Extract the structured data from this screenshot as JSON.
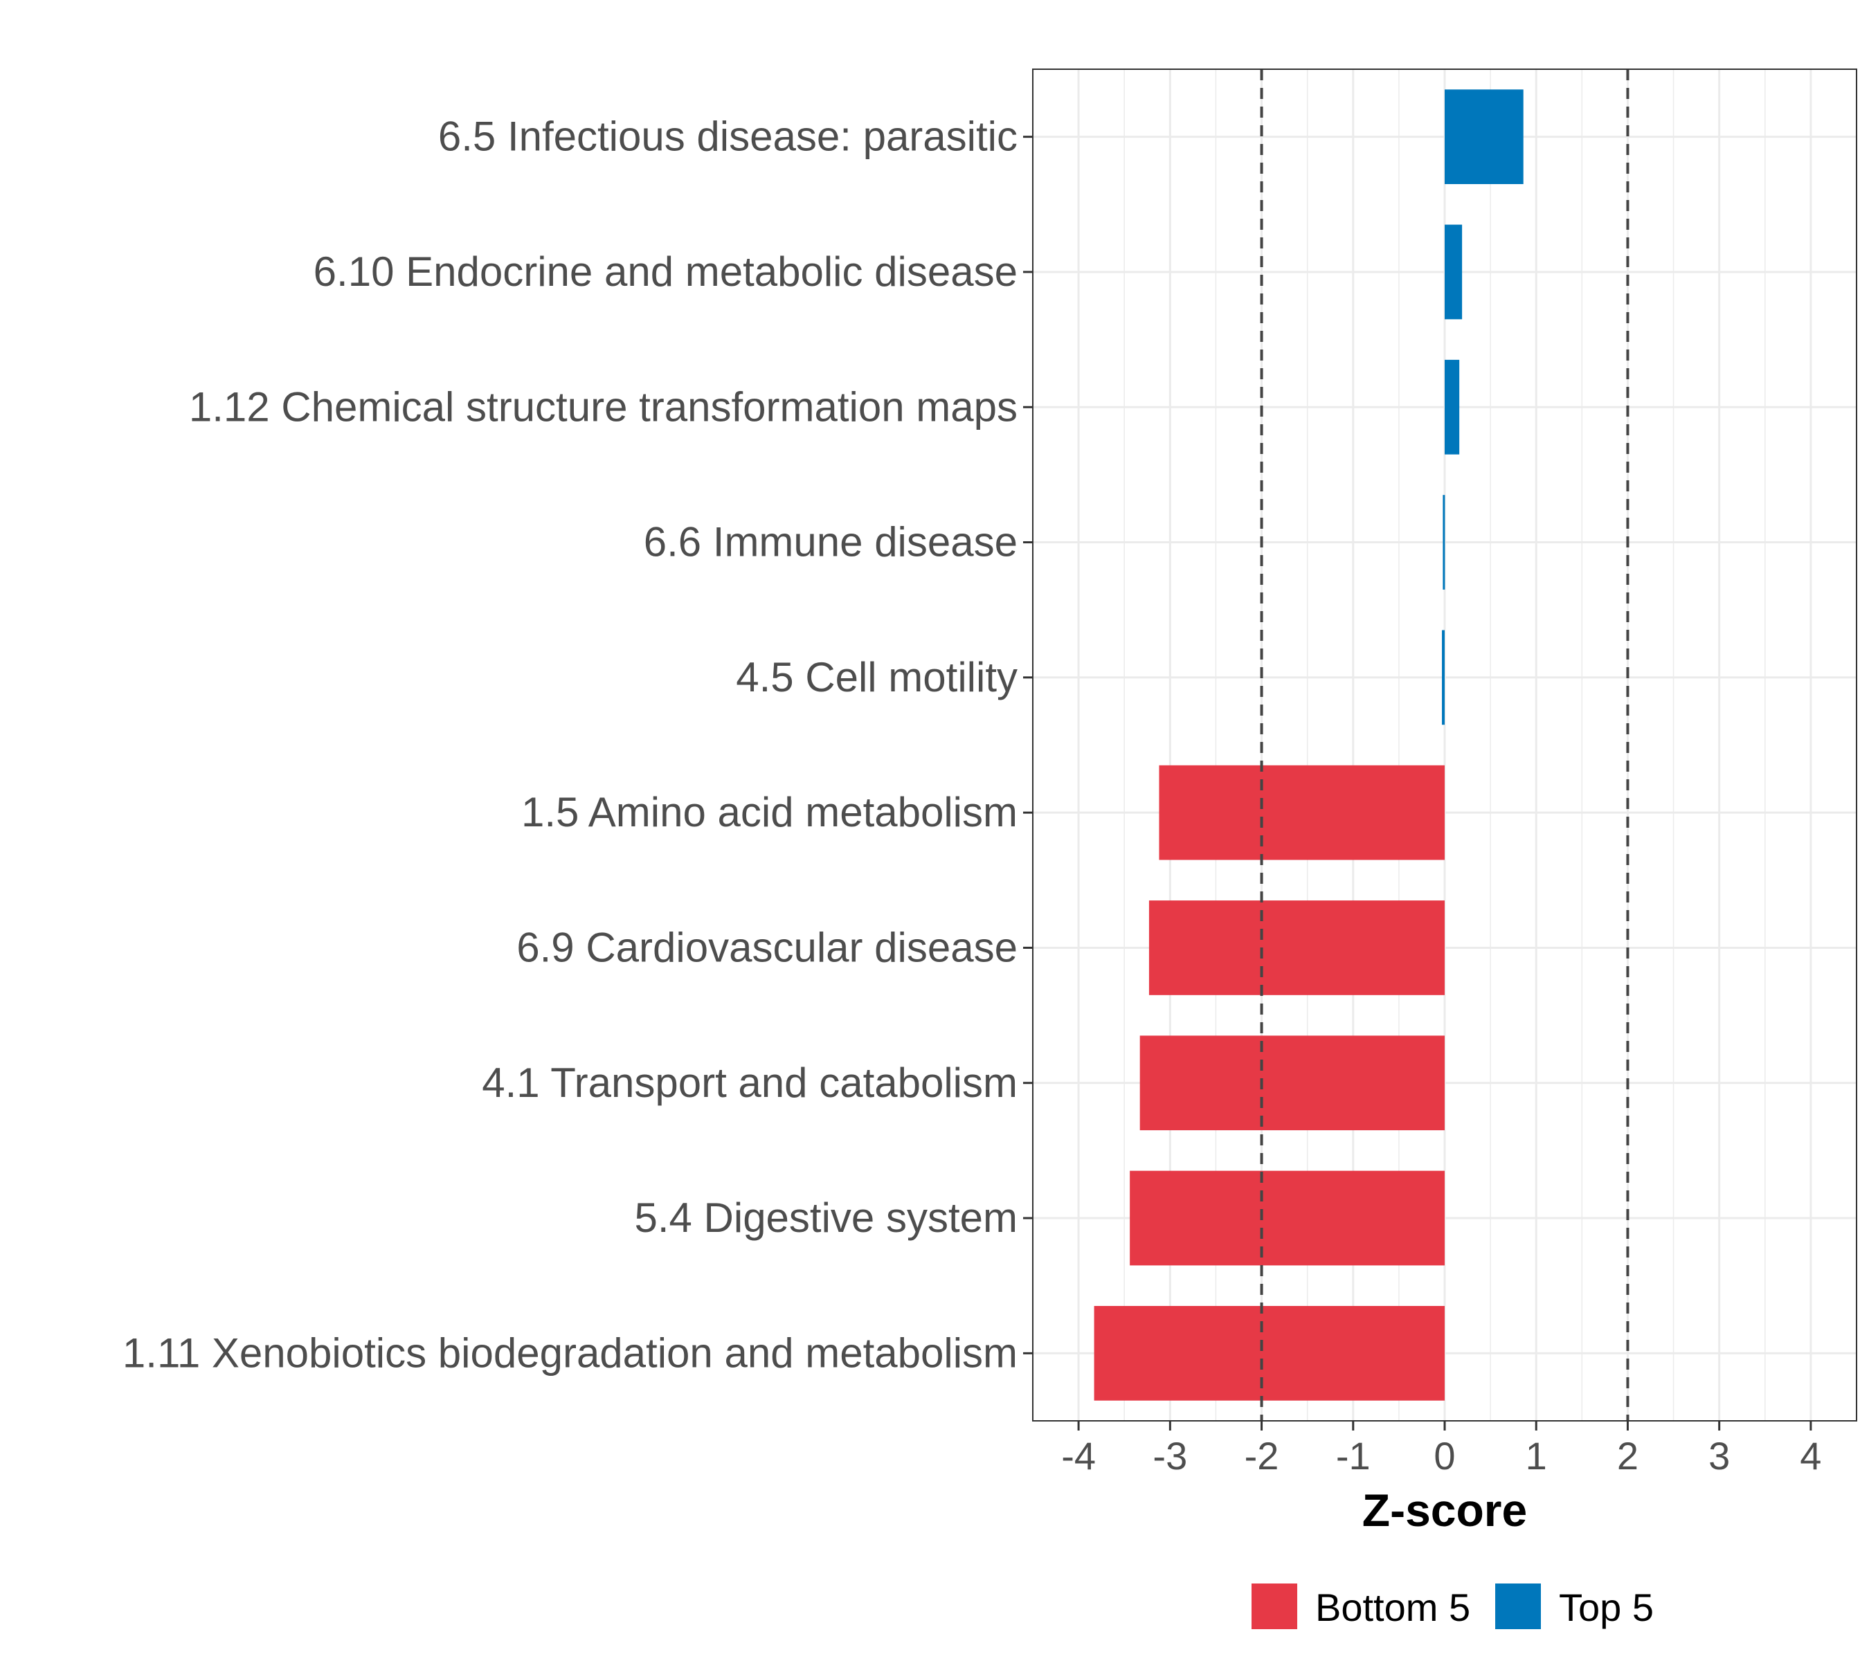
{
  "chart_data": {
    "type": "bar",
    "orientation": "horizontal",
    "categories": [
      "6.5 Infectious disease: parasitic",
      "6.10 Endocrine and metabolic disease",
      "1.12 Chemical structure transformation maps",
      "6.6 Immune disease",
      "4.5 Cell motility",
      "1.5 Amino acid metabolism",
      "6.9 Cardiovascular disease",
      "4.1 Transport and catabolism",
      "5.4 Digestive system",
      "1.11 Xenobiotics biodegradation and metabolism"
    ],
    "values": [
      0.86,
      0.19,
      0.16,
      -0.02,
      -0.03,
      -3.12,
      -3.23,
      -3.33,
      -3.44,
      -3.83
    ],
    "groups": [
      "Top 5",
      "Top 5",
      "Top 5",
      "Top 5",
      "Top 5",
      "Bottom 5",
      "Bottom 5",
      "Bottom 5",
      "Bottom 5",
      "Bottom 5"
    ],
    "xlabel": "Z-score",
    "ylabel": "",
    "title": "",
    "xlim": [
      -4.5,
      4.5
    ],
    "xticks": [
      -4,
      -3,
      -2,
      -1,
      0,
      1,
      2,
      3,
      4
    ],
    "xtick_labels": [
      "-4",
      "-3",
      "-2",
      "-1",
      "0",
      "1",
      "2",
      "3",
      "4"
    ],
    "reference_lines": [
      -2,
      2
    ],
    "grid": true,
    "legend": {
      "position": "bottom",
      "entries": [
        {
          "label": "Bottom 5",
          "color": "#e63946"
        },
        {
          "label": "Top 5",
          "color": "#0077bb"
        }
      ]
    },
    "colors": {
      "Bottom 5": "#e63946",
      "Top 5": "#0077bb"
    }
  }
}
